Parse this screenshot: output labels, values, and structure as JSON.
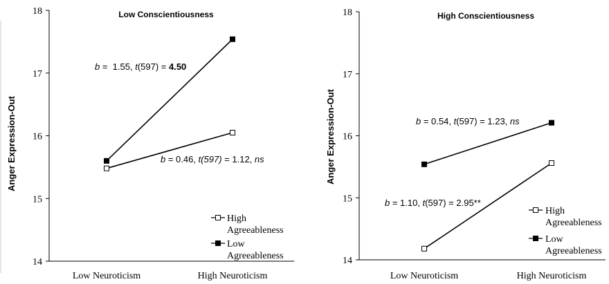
{
  "chart_data": [
    {
      "type": "line",
      "title": "Low Conscientiousness",
      "ylabel": "",
      "xlabel": "",
      "categories": [
        "Low Neuroticism",
        "High Neuroticism"
      ],
      "ylim": [
        14,
        18
      ],
      "yticks": [
        "14",
        "15",
        "16",
        "17",
        "18"
      ],
      "series": [
        {
          "name": "High Agreeableness",
          "marker": "open-square",
          "values": [
            15.48,
            16.05
          ]
        },
        {
          "name": "Low Agreeableness",
          "marker": "filled-square",
          "values": [
            15.6,
            17.54
          ]
        }
      ],
      "legend": {
        "items": [
          {
            "line1": "High",
            "line2": "Agreeableness"
          },
          {
            "line1": "Low",
            "line2": "Agreeableness"
          }
        ]
      },
      "annotations": [
        {
          "b": "b",
          "eq": " =  1.55, ",
          "t": "t",
          "df": "(597) = ",
          "val": "4.50"
        },
        {
          "b": "b",
          "eq": " = 0.46, ",
          "t": "t",
          "df": "(597)",
          "rest": " = 1.12, ",
          "sig": "ns"
        }
      ]
    },
    {
      "type": "line",
      "title": "High Conscientiousness",
      "ylabel": "Anger Expression-Out",
      "xlabel": "",
      "categories": [
        "Low Neuroticism",
        "High Neuroticism"
      ],
      "ylim": [
        14,
        18
      ],
      "yticks": [
        "14",
        "15",
        "16",
        "17",
        "18"
      ],
      "series": [
        {
          "name": "High Agreeableness",
          "marker": "open-square",
          "values": [
            14.18,
            15.56
          ]
        },
        {
          "name": "Low Agreeableness",
          "marker": "filled-square",
          "values": [
            15.54,
            16.21
          ]
        }
      ],
      "legend": {
        "items": [
          {
            "line1": "High",
            "line2": "Agreeableness"
          },
          {
            "line1": "Low",
            "line2": "Agreeableness"
          }
        ]
      },
      "annotations": [
        {
          "b": "b",
          "eq": " = 0.54, ",
          "t": "t",
          "df": "(597) = 1.23, ",
          "sig": "ns"
        },
        {
          "b": "b",
          "eq": " = 1.10, ",
          "t": "t",
          "df": "(597) = 2.95**"
        }
      ]
    }
  ],
  "left_ylabel": "Anger Expression-Out"
}
